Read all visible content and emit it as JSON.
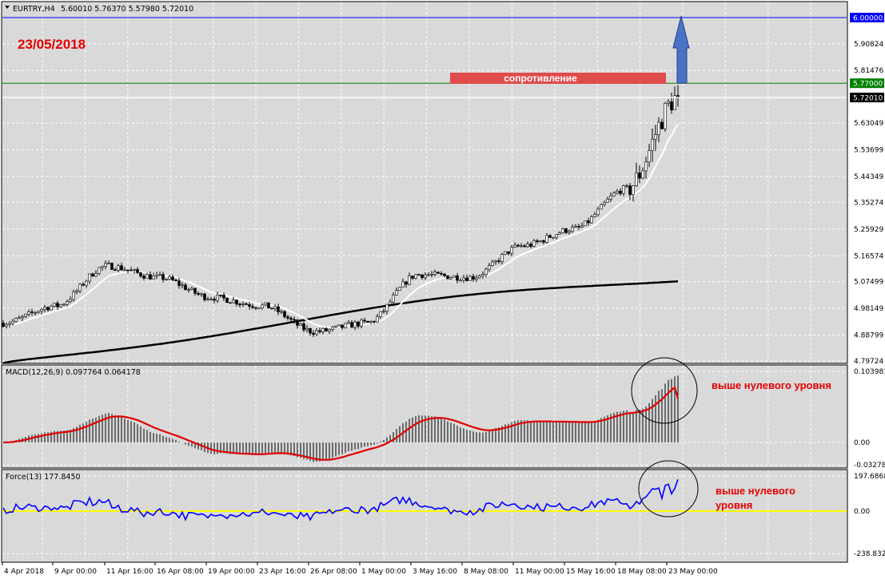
{
  "colors": {
    "background": "#d9d9d9",
    "grid": "#ffffff",
    "candle": "#000000",
    "fast_ma": "#ffffff",
    "slow_ma": "#000000",
    "resistance": "#008000",
    "target": "#0000ff",
    "price_line": "#ffffff",
    "resistance_box": "#e04b4b",
    "arrow": "#4a73c6",
    "macd_signal": "#e00000",
    "force_line": "#0000ff",
    "force_zero": "#ffff00",
    "annotation": "#e60000"
  },
  "chart_data": [
    {
      "type": "candlestick",
      "title": "EURTRY,H4",
      "ohlc_header": "5.60010 5.76370 5.57980 5.72010",
      "timeframe": "H4",
      "x_tick_labels": [
        "4 Apr 2018",
        "9 Apr 00:00",
        "11 Apr 16:00",
        "16 Apr 08:00",
        "19 Apr 00:00",
        "23 Apr 16:00",
        "26 Apr 08:00",
        "1 May 00:00",
        "3 May 16:00",
        "8 May 08:00",
        "11 May 00:00",
        "15 May 16:00",
        "18 May 08:00",
        "23 May 00:00"
      ],
      "y_tick_labels": [
        "5.90824",
        "5.81476",
        "5.63049",
        "5.53699",
        "5.44349",
        "5.35274",
        "5.25929",
        "5.16574",
        "5.07499",
        "4.98149",
        "4.88799",
        "4.79724"
      ],
      "ylim": [
        4.79724,
        6.0
      ],
      "y_ticks": [
        5.90824,
        5.81476,
        5.63049,
        5.53699,
        5.44349,
        5.35274,
        5.25929,
        5.16574,
        5.07499,
        4.98149,
        4.88799,
        4.79724
      ],
      "price_levels": {
        "target": "6.00000",
        "resistance": "5.77000",
        "current": "5.72010"
      },
      "key_points": [
        {
          "time": "4 Apr 2018",
          "close": 4.93
        },
        {
          "time": "9 Apr 00:00",
          "close": 4.99
        },
        {
          "time": "11 Apr 16:00",
          "close": 5.13
        },
        {
          "time": "16 Apr 08:00",
          "close": 5.09
        },
        {
          "time": "19 Apr 00:00",
          "close": 5.02
        },
        {
          "time": "23 Apr 16:00",
          "close": 4.99
        },
        {
          "time": "26 Apr 08:00",
          "close": 4.9
        },
        {
          "time": "1 May 00:00",
          "close": 4.93
        },
        {
          "time": "3 May 16:00",
          "close": 5.1
        },
        {
          "time": "8 May 08:00",
          "close": 5.09
        },
        {
          "time": "11 May 00:00",
          "close": 5.2
        },
        {
          "time": "15 May 16:00",
          "close": 5.26
        },
        {
          "time": "18 May 08:00",
          "close": 5.4
        },
        {
          "time": "23 May 00:00",
          "close": 5.72
        }
      ]
    },
    {
      "type": "bar",
      "title": "MACD(12,26,9) 0.097764 0.064178",
      "y_tick_labels": [
        "0.103981",
        "0.00",
        "-0.032789"
      ],
      "ylim": [
        -0.032789,
        0.103981
      ],
      "macd_last": 0.097764,
      "signal_last": 0.064178
    },
    {
      "type": "line",
      "title": "Force(13) 177.8450",
      "y_tick_labels": [
        "197.6868",
        "0.00",
        "-238.8326"
      ],
      "ylim": [
        -238.8326,
        197.6868
      ],
      "force_last": 177.845
    }
  ],
  "annotations": {
    "date": "23/05/2018",
    "resistance_label": "сопротивление",
    "macd_note": "выше нулевого уровня",
    "force_note_line1": "выше нулевого",
    "force_note_line2": "уровня"
  }
}
